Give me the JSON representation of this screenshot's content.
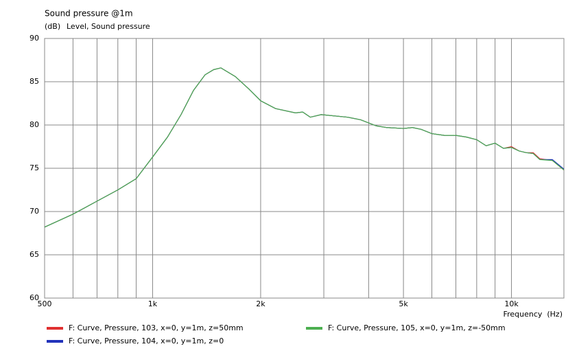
{
  "chart_data": {
    "type": "line",
    "title": "Sound pressure @1m",
    "subtitle": "Level, Sound pressure",
    "y_label": "(dB)",
    "x_label": "Frequency  (Hz)",
    "x_scale": "log",
    "grid": true,
    "xlim": [
      500,
      14000
    ],
    "ylim": [
      60,
      90
    ],
    "xticks": [
      {
        "value": 500,
        "label": "500"
      },
      {
        "value": 1000,
        "label": "1k"
      },
      {
        "value": 2000,
        "label": "2k"
      },
      {
        "value": 5000,
        "label": "5k"
      },
      {
        "value": 10000,
        "label": "10k"
      }
    ],
    "xgrid": [
      600,
      700,
      800,
      900,
      3000,
      4000,
      6000,
      7000,
      8000,
      9000
    ],
    "yticks": [
      60,
      65,
      70,
      75,
      80,
      85,
      90
    ],
    "x": [
      500,
      600,
      700,
      800,
      900,
      1000,
      1100,
      1200,
      1300,
      1400,
      1480,
      1550,
      1700,
      1850,
      2000,
      2200,
      2500,
      2620,
      2750,
      2950,
      3500,
      3800,
      4200,
      4500,
      5000,
      5300,
      5600,
      6000,
      6500,
      7000,
      7500,
      8000,
      8500,
      9000,
      9500,
      10000,
      10500,
      11000,
      11500,
      12000,
      13000,
      14000
    ],
    "series": [
      {
        "name": "F: Curve, Pressure, 103, x=0, y=1m, z=50mm",
        "color": "#e03030",
        "values": [
          68.2,
          69.7,
          71.2,
          72.5,
          73.8,
          76.3,
          78.6,
          81.2,
          84.0,
          85.8,
          86.4,
          86.6,
          85.6,
          84.2,
          82.8,
          81.9,
          81.4,
          81.5,
          80.9,
          81.2,
          80.9,
          80.6,
          79.9,
          79.7,
          79.6,
          79.7,
          79.5,
          79.0,
          78.8,
          78.8,
          78.6,
          78.3,
          77.6,
          77.9,
          77.3,
          77.5,
          77.0,
          76.8,
          76.8,
          76.1,
          75.9,
          74.8
        ]
      },
      {
        "name": "F: Curve, Pressure, 104, x=0, y=1m, z=0",
        "color": "#2233bb",
        "values": [
          68.2,
          69.7,
          71.2,
          72.5,
          73.8,
          76.3,
          78.6,
          81.2,
          84.0,
          85.8,
          86.4,
          86.6,
          85.6,
          84.2,
          82.8,
          81.9,
          81.4,
          81.5,
          80.9,
          81.2,
          80.9,
          80.6,
          79.9,
          79.7,
          79.6,
          79.7,
          79.5,
          79.0,
          78.8,
          78.8,
          78.6,
          78.3,
          77.6,
          77.9,
          77.3,
          77.4,
          77.0,
          76.8,
          76.7,
          76.0,
          76.0,
          74.9
        ]
      },
      {
        "name": "F: Curve, Pressure, 105, x=0, y=1m, z=-50mm",
        "color": "#4caf50",
        "values": [
          68.2,
          69.7,
          71.2,
          72.5,
          73.8,
          76.3,
          78.6,
          81.2,
          84.0,
          85.8,
          86.4,
          86.6,
          85.6,
          84.2,
          82.8,
          81.9,
          81.4,
          81.5,
          80.9,
          81.2,
          80.9,
          80.6,
          79.9,
          79.7,
          79.6,
          79.7,
          79.5,
          79.0,
          78.8,
          78.8,
          78.6,
          78.3,
          77.6,
          77.9,
          77.3,
          77.4,
          77.0,
          76.8,
          76.7,
          76.0,
          75.9,
          74.8
        ]
      }
    ]
  }
}
